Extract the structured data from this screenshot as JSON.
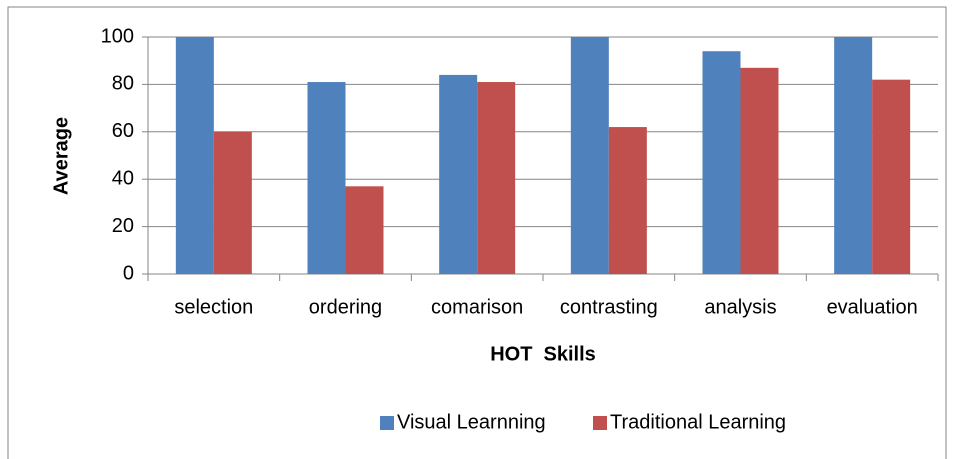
{
  "chart_data": {
    "type": "bar",
    "x_label": "HOT  Skills",
    "y_label": "Average",
    "categories": [
      "selection",
      "ordering",
      "comarison",
      "contrasting",
      "analysis",
      "evaluation"
    ],
    "series": [
      {
        "name": "Visual Learnning",
        "color": "#4f81bd",
        "values": [
          100,
          81,
          84,
          100,
          94,
          100
        ]
      },
      {
        "name": "Traditional Learning",
        "color": "#c0504d",
        "values": [
          60,
          37,
          81,
          62,
          87,
          82
        ]
      }
    ],
    "ylim": [
      0,
      100
    ],
    "yticks": [
      0,
      20,
      40,
      60,
      80,
      100
    ],
    "grid": true,
    "legend": "bottom"
  }
}
